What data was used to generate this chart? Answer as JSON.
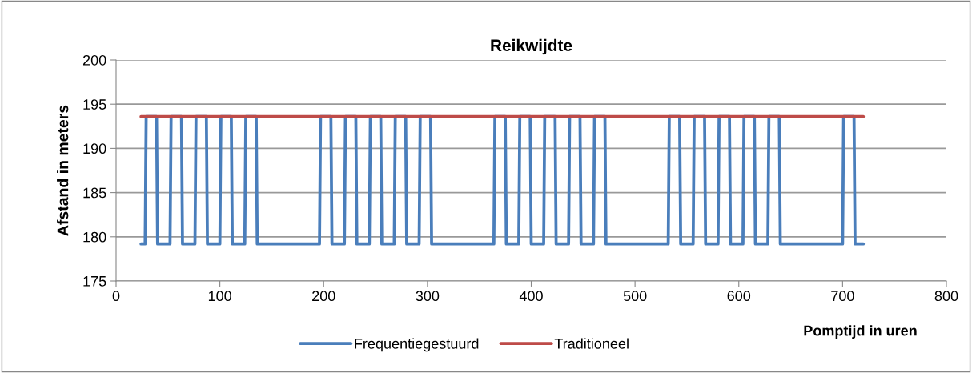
{
  "chart_data": {
    "type": "line",
    "title": "Reikwijdte",
    "xlabel": "Pomptijd in uren",
    "ylabel": "Afstand in meters",
    "xlim": [
      0,
      800
    ],
    "xticks": [
      0,
      100,
      200,
      300,
      400,
      500,
      600,
      700,
      800
    ],
    "ylim": [
      175,
      200
    ],
    "yticks": [
      175,
      180,
      185,
      190,
      195,
      200
    ],
    "grid": "y",
    "legend": "bottom",
    "marker": "none",
    "line_style": "solid",
    "series": [
      {
        "name": "Frequentiegestuurd",
        "color": "#4a7ebb",
        "x": [
          24,
          28,
          29,
          39,
          40,
          52,
          53,
          63,
          64,
          76,
          77,
          87,
          88,
          100,
          101,
          111,
          112,
          124,
          125,
          135,
          136,
          196,
          197,
          207,
          208,
          220,
          221,
          231,
          232,
          244,
          245,
          255,
          256,
          268,
          269,
          279,
          280,
          292,
          293,
          303,
          304,
          364,
          365,
          375,
          376,
          388,
          389,
          399,
          400,
          412,
          413,
          423,
          424,
          436,
          437,
          447,
          448,
          460,
          461,
          471,
          472,
          532,
          533,
          543,
          544,
          556,
          557,
          567,
          568,
          580,
          581,
          591,
          592,
          604,
          605,
          615,
          616,
          628,
          629,
          639,
          640,
          700,
          701,
          711,
          712,
          720
        ],
        "values": [
          179.2,
          179.2,
          193.6,
          193.6,
          179.2,
          179.2,
          193.6,
          193.6,
          179.2,
          179.2,
          193.6,
          193.6,
          179.2,
          179.2,
          193.6,
          193.6,
          179.2,
          179.2,
          193.6,
          193.6,
          179.2,
          179.2,
          193.6,
          193.6,
          179.2,
          179.2,
          193.6,
          193.6,
          179.2,
          179.2,
          193.6,
          193.6,
          179.2,
          179.2,
          193.6,
          193.6,
          179.2,
          179.2,
          193.6,
          193.6,
          179.2,
          179.2,
          193.6,
          193.6,
          179.2,
          179.2,
          193.6,
          193.6,
          179.2,
          179.2,
          193.6,
          193.6,
          179.2,
          179.2,
          193.6,
          193.6,
          179.2,
          179.2,
          193.6,
          193.6,
          179.2,
          179.2,
          193.6,
          193.6,
          179.2,
          179.2,
          193.6,
          193.6,
          179.2,
          179.2,
          193.6,
          193.6,
          179.2,
          179.2,
          193.6,
          193.6,
          179.2,
          179.2,
          193.6,
          193.6,
          179.2,
          179.2,
          193.6,
          193.6,
          179.2,
          179.2
        ]
      },
      {
        "name": "Traditioneel",
        "color": "#be4b48",
        "x": [
          24,
          720
        ],
        "values": [
          193.6,
          193.6
        ]
      }
    ]
  }
}
